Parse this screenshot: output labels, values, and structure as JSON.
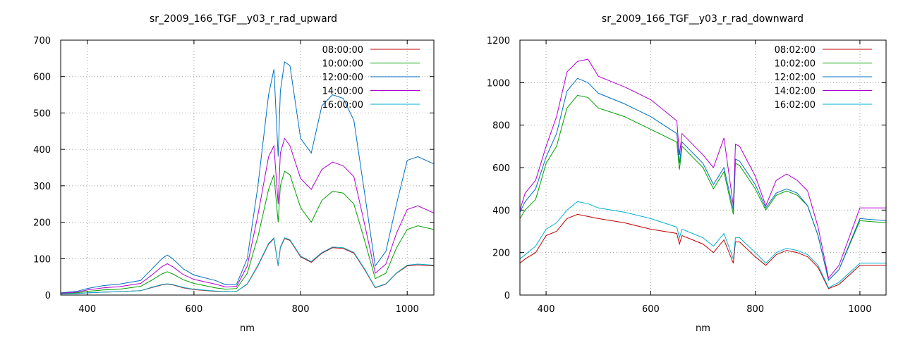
{
  "chart_data": [
    {
      "type": "line",
      "title": "sr_2009_166_TGF__y03_r_rad_upward",
      "xlabel": "nm",
      "ylabel": "",
      "xlim": [
        350,
        1050
      ],
      "ylim": [
        0,
        700
      ],
      "xticks": [
        400,
        600,
        800,
        1000
      ],
      "yticks": [
        0,
        100,
        200,
        300,
        400,
        500,
        600,
        700
      ],
      "grid": true,
      "legend_position": "top-right",
      "x": [
        350,
        380,
        400,
        430,
        460,
        500,
        520,
        540,
        550,
        560,
        580,
        600,
        640,
        660,
        680,
        700,
        720,
        740,
        750,
        758,
        762,
        770,
        780,
        800,
        820,
        840,
        860,
        880,
        900,
        920,
        940,
        960,
        980,
        1000,
        1020,
        1050
      ],
      "series": [
        {
          "name": "08:00:00",
          "color": "#c00000",
          "values": [
            3,
            4,
            6,
            8,
            9,
            12,
            20,
            28,
            30,
            28,
            20,
            15,
            10,
            9,
            10,
            30,
            80,
            140,
            155,
            80,
            130,
            155,
            150,
            105,
            90,
            115,
            130,
            128,
            115,
            70,
            20,
            30,
            60,
            80,
            83,
            80
          ]
        },
        {
          "name": "10:00:00",
          "color": "#00a000",
          "values": [
            4,
            6,
            10,
            14,
            16,
            24,
            40,
            58,
            64,
            58,
            42,
            32,
            20,
            16,
            18,
            60,
            160,
            290,
            330,
            200,
            300,
            340,
            330,
            240,
            200,
            260,
            285,
            280,
            250,
            150,
            45,
            60,
            130,
            180,
            190,
            180
          ]
        },
        {
          "name": "12:00:00",
          "color": "#0070c0",
          "values": [
            6,
            10,
            18,
            26,
            30,
            40,
            70,
            100,
            110,
            100,
            72,
            55,
            40,
            28,
            30,
            100,
            300,
            550,
            620,
            380,
            560,
            640,
            630,
            430,
            390,
            520,
            550,
            540,
            480,
            280,
            80,
            120,
            250,
            370,
            380,
            360
          ]
        },
        {
          "name": "14:00:00",
          "color": "#b000d0",
          "values": [
            5,
            8,
            14,
            20,
            23,
            32,
            54,
            78,
            86,
            78,
            56,
            43,
            30,
            22,
            24,
            80,
            220,
            380,
            410,
            250,
            390,
            430,
            410,
            320,
            290,
            345,
            365,
            355,
            325,
            195,
            60,
            85,
            170,
            235,
            245,
            225
          ]
        },
        {
          "name": "16:00:00",
          "color": "#00b0d0",
          "values": [
            3,
            4,
            6,
            8,
            9,
            12,
            21,
            29,
            31,
            29,
            21,
            16,
            11,
            9,
            10,
            31,
            82,
            142,
            157,
            82,
            132,
            157,
            152,
            107,
            92,
            117,
            132,
            130,
            117,
            72,
            21,
            31,
            61,
            82,
            85,
            82
          ]
        }
      ]
    },
    {
      "type": "line",
      "title": "sr_2009_166_TGF__y03_r_rad_downward",
      "xlabel": "nm",
      "ylabel": "",
      "xlim": [
        350,
        1050
      ],
      "ylim": [
        0,
        1200
      ],
      "xticks": [
        400,
        600,
        800,
        1000
      ],
      "yticks": [
        0,
        200,
        400,
        600,
        800,
        1000,
        1200
      ],
      "grid": true,
      "legend_position": "top-right",
      "x": [
        350,
        360,
        380,
        400,
        420,
        440,
        460,
        480,
        500,
        550,
        600,
        650,
        655,
        660,
        700,
        720,
        740,
        758,
        762,
        770,
        800,
        820,
        840,
        860,
        880,
        900,
        920,
        940,
        960,
        1000,
        1050
      ],
      "series": [
        {
          "name": "08:02:00",
          "color": "#c00000",
          "values": [
            150,
            170,
            200,
            280,
            300,
            360,
            380,
            370,
            360,
            340,
            310,
            290,
            240,
            280,
            240,
            200,
            260,
            150,
            250,
            250,
            180,
            140,
            190,
            210,
            200,
            180,
            130,
            30,
            50,
            140,
            140
          ]
        },
        {
          "name": "10:02:00",
          "color": "#00a000",
          "values": [
            360,
            400,
            450,
            620,
            700,
            880,
            940,
            930,
            880,
            840,
            780,
            720,
            590,
            700,
            600,
            500,
            580,
            380,
            620,
            610,
            500,
            400,
            470,
            490,
            470,
            420,
            280,
            70,
            120,
            350,
            340
          ]
        },
        {
          "name": "12:02:00",
          "color": "#0070c0",
          "values": [
            390,
            440,
            500,
            650,
            760,
            960,
            1020,
            1000,
            950,
            900,
            840,
            760,
            620,
            720,
            620,
            520,
            600,
            400,
            640,
            630,
            520,
            410,
            480,
            500,
            480,
            420,
            280,
            70,
            120,
            360,
            350
          ]
        },
        {
          "name": "14:02:00",
          "color": "#b000d0",
          "values": [
            400,
            480,
            540,
            700,
            840,
            1050,
            1100,
            1110,
            1030,
            980,
            920,
            820,
            660,
            760,
            660,
            600,
            740,
            420,
            710,
            700,
            560,
            420,
            540,
            570,
            540,
            490,
            320,
            80,
            140,
            410,
            410
          ]
        },
        {
          "name": "16:02:00",
          "color": "#00b0d0",
          "values": [
            170,
            190,
            230,
            310,
            340,
            400,
            440,
            430,
            410,
            390,
            360,
            320,
            270,
            310,
            270,
            230,
            290,
            170,
            270,
            270,
            200,
            150,
            200,
            220,
            210,
            190,
            140,
            35,
            60,
            150,
            150
          ]
        }
      ]
    }
  ]
}
